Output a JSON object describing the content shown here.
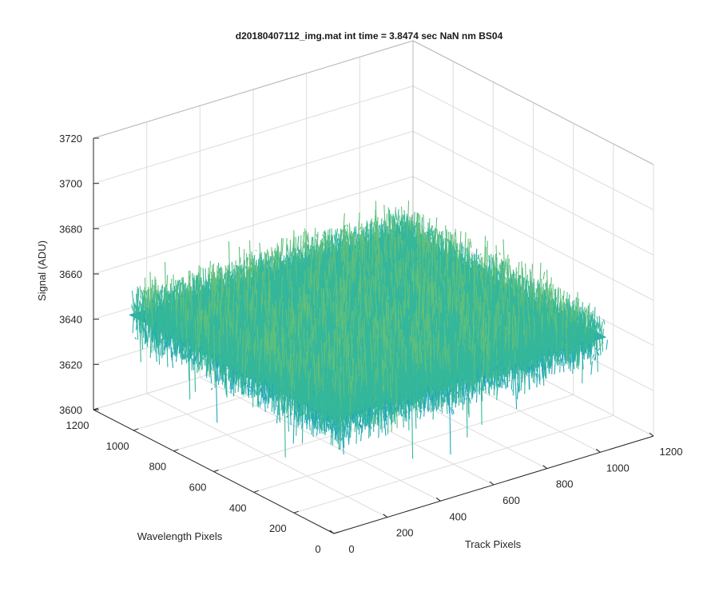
{
  "chart_data": {
    "type": "surface",
    "title": "d20180407112_img.mat int time = 3.8474 sec  NaN nm BS04",
    "xlabel": "Track Pixels",
    "ylabel": "Wavelength Pixels",
    "zlabel": "Signal (ADU)",
    "xlim": [
      0,
      1200
    ],
    "ylim": [
      0,
      1200
    ],
    "zlim": [
      3600,
      3720
    ],
    "x_ticks": [
      "0",
      "200",
      "400",
      "600",
      "800",
      "1000",
      "1200"
    ],
    "y_ticks": [
      "0",
      "200",
      "400",
      "600",
      "800",
      "1000",
      "1200"
    ],
    "z_ticks": [
      "3600",
      "3620",
      "3640",
      "3660",
      "3680",
      "3700",
      "3720"
    ],
    "data_extent": {
      "x": [
        0,
        1024
      ],
      "y": [
        0,
        1024
      ]
    },
    "signal_mean": 3650,
    "signal_spread": 10,
    "signal_min": 3612,
    "signal_max": 3700,
    "colormap": [
      "#1f5fd6",
      "#1591d2",
      "#21a6be",
      "#35b79a",
      "#62c07a",
      "#9dbd57",
      "#c8b84a"
    ],
    "grid": true,
    "box": true
  }
}
